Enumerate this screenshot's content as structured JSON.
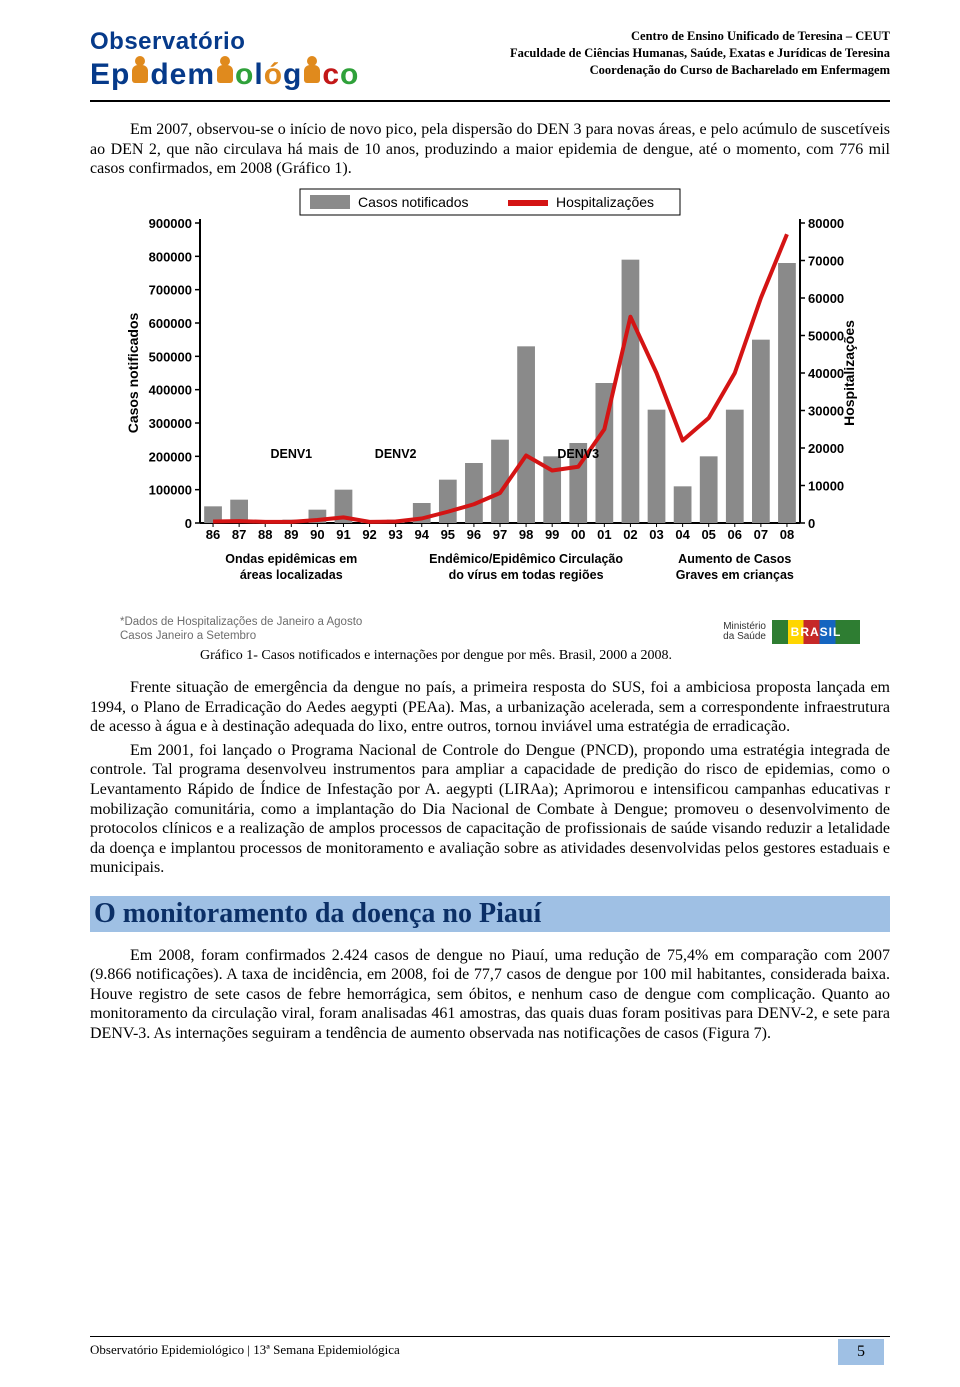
{
  "header": {
    "logo_line1": "Observatório",
    "inst1": "Centro de Ensino Unificado de Teresina – CEUT",
    "inst2": "Faculdade de Ciências Humanas, Saúde, Exatas e Jurídicas de Teresina",
    "inst3": "Coordenação do Curso de Bacharelado em Enfermagem"
  },
  "para1": "Em 2007, observou-se o início de novo pico, pela dispersão do DEN 3 para novas áreas, e pelo acúmulo de suscetíveis ao DEN 2, que não circulava há mais de 10 anos, produzindo a maior epidemia de dengue, até o momento, com 776 mil casos confirmados, em 2008 (Gráfico 1).",
  "chart": {
    "type": "combo-bar-line",
    "legend_bar": "Casos notificados",
    "legend_line": "Hospitalizações",
    "y1_label": "Casos notificados",
    "y2_label": "Hospitalizações",
    "y1_min": 0,
    "y1_max": 900000,
    "y1_step": 100000,
    "y2_min": 0,
    "y2_max": 80000,
    "y2_step": 10000,
    "bar_color": "#8a8a8a",
    "line_color": "#d41414",
    "line_width": 4,
    "background": "#ffffff",
    "years": [
      "86",
      "87",
      "88",
      "89",
      "90",
      "91",
      "92",
      "93",
      "94",
      "95",
      "96",
      "97",
      "98",
      "99",
      "00",
      "01",
      "02",
      "03",
      "04",
      "05",
      "06",
      "07",
      "08"
    ],
    "bars": [
      50000,
      70000,
      5000,
      10000,
      40000,
      100000,
      5000,
      10000,
      60000,
      130000,
      180000,
      250000,
      530000,
      200000,
      240000,
      420000,
      790000,
      340000,
      110000,
      200000,
      340000,
      550000,
      780000
    ],
    "line": [
      400,
      500,
      300,
      300,
      800,
      1500,
      300,
      400,
      1200,
      3000,
      5000,
      8000,
      18000,
      14000,
      15000,
      25000,
      55000,
      40000,
      22000,
      28000,
      40000,
      60000,
      77000
    ],
    "denv_labels": [
      {
        "text": "DENV1",
        "x_index": 3
      },
      {
        "text": "DENV2",
        "x_index": 7
      },
      {
        "text": "DENV3",
        "x_index": 14
      }
    ],
    "phase1a": "Ondas epidêmicas em",
    "phase1b": "áreas localizadas",
    "phase2a": "Endêmico/Epidêmico Circulação",
    "phase2b": "do vírus em todas regiões",
    "phase3a": "Aumento de Casos",
    "phase3b": "Graves em crianças",
    "footnote1": "*Dados de Hospitalizações de Janeiro a Agosto",
    "footnote2": "Casos Janeiro a Setembro",
    "ministerio1": "Ministério",
    "ministerio2": "da Saúde",
    "brasil": "BRASIL"
  },
  "caption": "Gráfico 1- Casos notificados e internações por dengue por mês. Brasil, 2000 a 2008.",
  "para2": "Frente situação de emergência da dengue no país, a primeira resposta do SUS, foi a ambiciosa proposta lançada em 1994, o Plano de Erradicação do Aedes aegypti (PEAa). Mas, a urbanização acelerada, sem a correspondente infraestrutura de acesso à água e à destinação adequada do lixo, entre outros, tornou inviável uma estratégia de erradicação.",
  "para3": "Em 2001, foi lançado o Programa Nacional de Controle do Dengue (PNCD), propondo uma estratégia integrada de controle. Tal programa desenvolveu instrumentos para ampliar a capacidade de predição do risco de epidemias, como o Levantamento Rápido de Índice de Infestação por A. aegypti (LIRAa); Aprimorou e intensificou campanhas educativas r mobilização comunitária, como a implantação do Dia Nacional de Combate à Dengue; promoveu o desenvolvimento de protocolos clínicos e a realização de amplos processos de capacitação de profissionais de saúde visando reduzir a letalidade da doença e implantou processos de monitoramento e avaliação sobre as atividades desenvolvidas pelos gestores estaduais e municipais.",
  "section_title": "O monitoramento da doença no Piauí",
  "para4": "Em 2008, foram confirmados 2.424 casos de dengue no Piauí, uma redução de 75,4% em comparação com 2007 (9.866 notificações). A taxa de incidência, em 2008, foi de 77,7 casos de dengue por 100 mil habitantes, considerada baixa. Houve registro de sete casos de febre hemorrágica, sem óbitos, e nenhum caso de dengue com complicação. Quanto ao monitoramento da circulação viral, foram analisadas 461 amostras, das quais duas foram positivas para DENV-2, e sete para DENV-3. As internações seguiram a tendência de aumento observada nas notificações de casos (Figura 7).",
  "footer": "Observatório Epidemiológico | 13ª Semana Epidemiológica",
  "page": "5"
}
